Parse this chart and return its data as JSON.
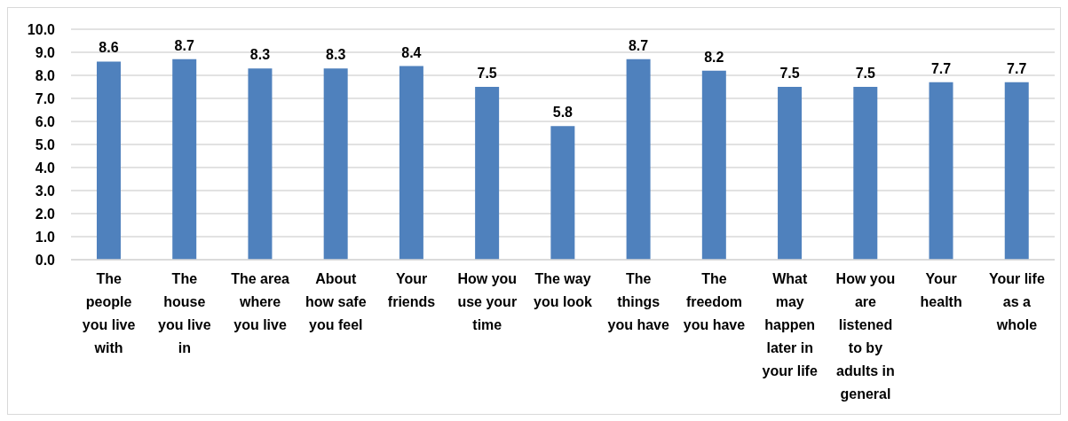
{
  "chart_data": {
    "type": "bar",
    "categories": [
      "The people you live with",
      "The house you live in",
      "The area where you live",
      "About how safe you feel",
      "Your friends",
      "How you use your time",
      "The way you look",
      "The things you have",
      "The freedom you have",
      "What may happen later in your life",
      "How you are listened to by adults in general",
      "Your health",
      "Your life as a whole"
    ],
    "values": [
      8.6,
      8.7,
      8.3,
      8.3,
      8.4,
      7.5,
      5.8,
      8.7,
      8.2,
      7.5,
      7.5,
      7.7,
      7.7
    ],
    "color": "#4f81bd",
    "ylim": [
      0,
      10
    ],
    "yticks": [
      {
        "value": 0,
        "label": "0.0"
      },
      {
        "value": 1,
        "label": "1.0"
      },
      {
        "value": 2,
        "label": "2.0"
      },
      {
        "value": 3,
        "label": "3.0"
      },
      {
        "value": 4,
        "label": "4.0"
      },
      {
        "value": 5,
        "label": "5.0"
      },
      {
        "value": 6,
        "label": "6.0"
      },
      {
        "value": 7,
        "label": "7.0"
      },
      {
        "value": 8,
        "label": "8.0"
      },
      {
        "value": 9,
        "label": "9.0"
      },
      {
        "value": 10,
        "label": "10.0"
      }
    ],
    "grid": "y",
    "data_labels": true
  }
}
